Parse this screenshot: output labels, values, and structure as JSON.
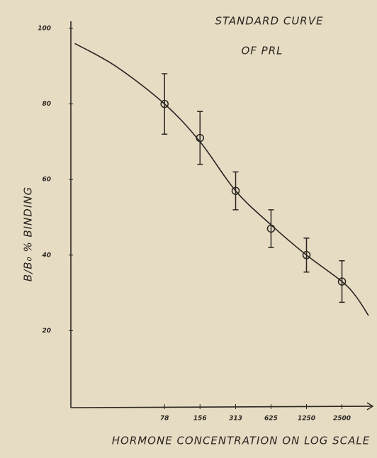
{
  "chart_data": {
    "type": "line",
    "title": [
      "STANDARD CURVE",
      "OF PRL"
    ],
    "y_label": "B/B₀ % BINDING",
    "x_label": "HORMONE CONCENTRATION ON LOG SCALE",
    "log_x": true,
    "xlim": [
      12.5,
      4200
    ],
    "ylim": [
      0,
      100
    ],
    "xticks": [
      78,
      156,
      313,
      625,
      1250,
      2500
    ],
    "yticks": [
      20,
      40,
      60,
      80,
      100
    ],
    "series": [
      {
        "color": "#2a2520",
        "x": [
          78,
          156,
          313,
          625,
          1250,
          2500
        ],
        "values": [
          80,
          71,
          57,
          47,
          40,
          33
        ],
        "errors": [
          8,
          7,
          5,
          5,
          4.5,
          5.5
        ]
      },
      {
        "color": "#2a2520",
        "x": [
          13.5,
          30,
          78,
          156,
          313,
          625,
          1250,
          2500,
          3300,
          4200
        ],
        "values": [
          96,
          90,
          80,
          70,
          57,
          48,
          40,
          33,
          29,
          24
        ]
      }
    ]
  }
}
